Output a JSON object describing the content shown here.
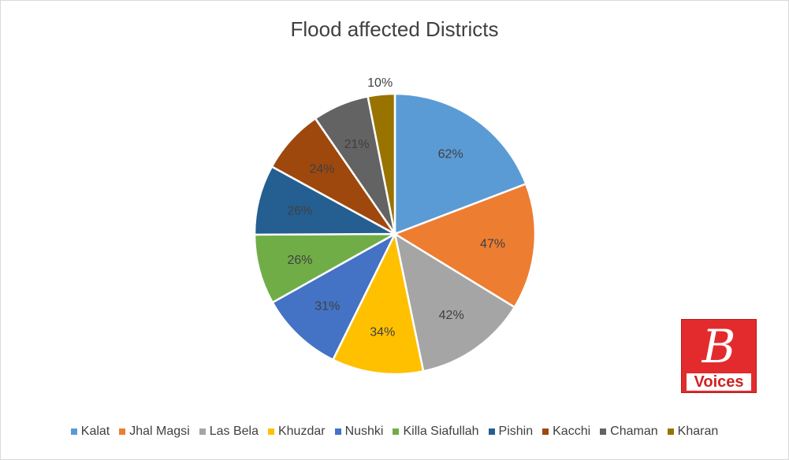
{
  "chart_data": {
    "type": "pie",
    "title": "Flood affected Districts",
    "categories": [
      "Kalat",
      "Jhal Magsi",
      "Las Bela",
      "Khuzdar",
      "Nushki",
      "Killa Siafullah",
      "Pishin",
      "Kacchi",
      "Chaman",
      "Kharan"
    ],
    "values": [
      62,
      47,
      42,
      34,
      31,
      26,
      26,
      24,
      21,
      10
    ],
    "data_labels": [
      "62%",
      "47%",
      "42%",
      "34%",
      "31%",
      "26%",
      "26%",
      "24%",
      "21%",
      "10%"
    ],
    "colors": [
      "#5b9bd5",
      "#ed7d31",
      "#a5a5a5",
      "#ffc000",
      "#4472c4",
      "#70ad47",
      "#255e91",
      "#9e480e",
      "#636363",
      "#997300"
    ],
    "legend": "bottom",
    "start_angle": "12 o'clock",
    "direction": "clockwise"
  },
  "logo": {
    "letter": "B",
    "word": "Voices"
  }
}
